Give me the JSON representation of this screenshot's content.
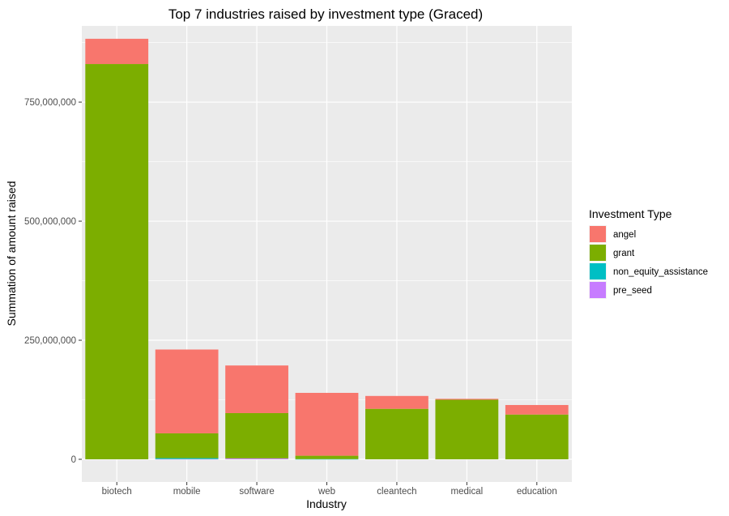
{
  "chart_data": {
    "type": "bar",
    "stacked": true,
    "title": "Top 7 industries raised by investment type (Graced)",
    "xlabel": "Industry",
    "ylabel": "Summation of amount raised",
    "ylim": [
      0,
      910000000
    ],
    "yticks": [
      0,
      250000000,
      500000000,
      750000000
    ],
    "ytick_labels": [
      "0",
      "250,000,000",
      "500,000,000",
      "750,000,000"
    ],
    "grid": true,
    "legend_position": "right",
    "legend_title": "Investment Type",
    "categories": [
      "biotech",
      "mobile",
      "software",
      "web",
      "cleantech",
      "medical",
      "education"
    ],
    "series": [
      {
        "name": "pre_seed",
        "color": "#C77CFF",
        "values": [
          0,
          500000,
          2000000,
          0,
          0,
          0,
          0
        ]
      },
      {
        "name": "non_equity_assistance",
        "color": "#00BFC4",
        "values": [
          0,
          2000000,
          0,
          500000,
          0,
          0,
          0
        ]
      },
      {
        "name": "grant",
        "color": "#7CAE00",
        "values": [
          830000000,
          52000000,
          95000000,
          7000000,
          106000000,
          125000000,
          94000000
        ]
      },
      {
        "name": "angel",
        "color": "#F8766D",
        "values": [
          53000000,
          176000000,
          100000000,
          132000000,
          27000000,
          2000000,
          20000000
        ]
      }
    ],
    "legend_order": [
      "angel",
      "grant",
      "non_equity_assistance",
      "pre_seed"
    ]
  }
}
